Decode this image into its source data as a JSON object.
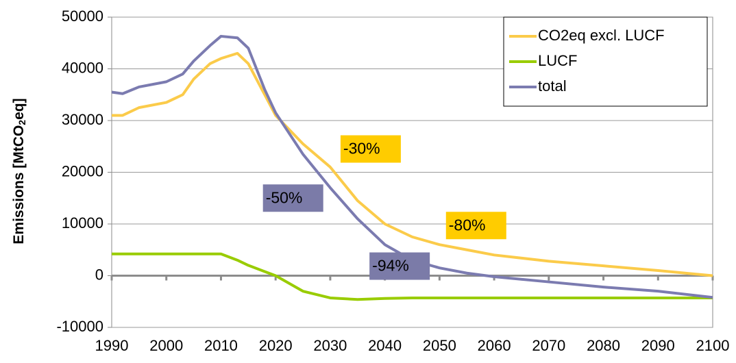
{
  "chart_data": {
    "type": "line",
    "ylabel_parts": [
      "Emissions [MtCO",
      "2",
      "eq]"
    ],
    "x": [
      1990,
      1992,
      1995,
      2000,
      2003,
      2005,
      2008,
      2010,
      2013,
      2015,
      2018,
      2020,
      2025,
      2030,
      2035,
      2040,
      2045,
      2050,
      2055,
      2060,
      2070,
      2080,
      2090,
      2100
    ],
    "series": [
      {
        "name": "CO2eq excl. LUCF",
        "color": "#fbcb4a",
        "values": [
          31000,
          31000,
          32500,
          33500,
          35000,
          38000,
          41000,
          42000,
          43000,
          41000,
          35000,
          31000,
          25500,
          21000,
          14500,
          10000,
          7500,
          6000,
          5000,
          4000,
          2800,
          1900,
          1000,
          0
        ]
      },
      {
        "name": "LUCF",
        "color": "#99cc00",
        "values": [
          4200,
          4200,
          4200,
          4200,
          4200,
          4200,
          4200,
          4200,
          3000,
          2000,
          800,
          0,
          -3000,
          -4300,
          -4600,
          -4400,
          -4300,
          -4300,
          -4300,
          -4300,
          -4300,
          -4300,
          -4300,
          -4300
        ]
      },
      {
        "name": "total",
        "color": "#7b7bb0",
        "values": [
          35500,
          35200,
          36500,
          37500,
          39000,
          41500,
          44500,
          46300,
          46000,
          44000,
          36000,
          31500,
          23500,
          17000,
          11000,
          6000,
          3000,
          1500,
          500,
          -200,
          -1200,
          -2200,
          -3000,
          -4200
        ]
      }
    ],
    "xlim": [
      1990,
      2100
    ],
    "xticks": [
      1990,
      2000,
      2010,
      2020,
      2030,
      2040,
      2050,
      2060,
      2070,
      2080,
      2090,
      2100
    ],
    "ylim": [
      -10000,
      50000
    ],
    "yticks": [
      -10000,
      0,
      10000,
      20000,
      30000,
      40000,
      50000
    ],
    "grid": true,
    "legend": "top-right",
    "annotations": [
      {
        "text": "-30%",
        "x": 2037.4,
        "y": 24500,
        "color": "#ffcc00"
      },
      {
        "text": "-50%",
        "x": 2023.2,
        "y": 15000,
        "color": "#7b7ba8"
      },
      {
        "text": "-80%",
        "x": 2056.7,
        "y": 9700,
        "color": "#ffcc00"
      },
      {
        "text": "-94%",
        "x": 2042.7,
        "y": 1850,
        "color": "#7b7ba8"
      }
    ]
  }
}
